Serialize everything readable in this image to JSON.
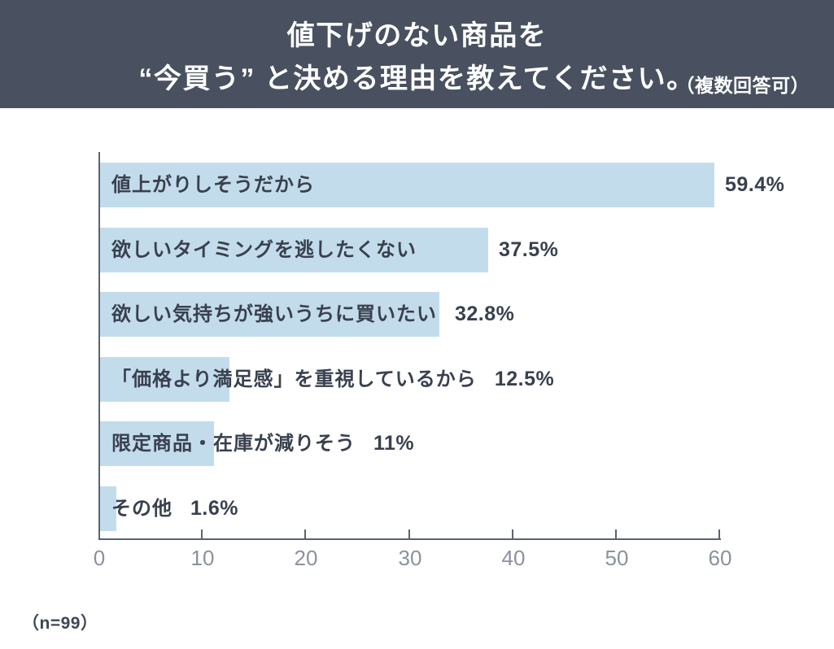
{
  "header": {
    "title_line1": "値下げのない商品を",
    "title_line2": "“今買う” と決める理由を教えてください。",
    "note": "（複数回答可）"
  },
  "chart_data": {
    "type": "bar",
    "orientation": "horizontal",
    "title": "値下げのない商品を “今買う” と決める理由を教えてください。（複数回答可）",
    "categories": [
      "値上がりしそうだから",
      "欲しいタイミングを逃したくない",
      "欲しい気持ちが強いうちに買いたい",
      "「価格より満足感」を重視しているから",
      "限定商品・在庫が減りそう",
      "その他"
    ],
    "values": [
      59.4,
      37.5,
      32.8,
      12.5,
      11,
      1.6
    ],
    "value_labels": [
      "59.4%",
      "37.5%",
      "32.8%",
      "12.5%",
      "11%",
      "1.6%"
    ],
    "xlabel": "",
    "ylabel": "",
    "xlim": [
      0,
      60
    ],
    "x_ticks": [
      0,
      10,
      20,
      30,
      40,
      50,
      60
    ],
    "grid": false,
    "legend": false,
    "bar_color": "#c3dcec",
    "label_color": "#39404e",
    "tick_color": "#8b929c",
    "axis_color": "#5c6370",
    "banner_color": "#495160"
  },
  "footnote": "（n=99）"
}
